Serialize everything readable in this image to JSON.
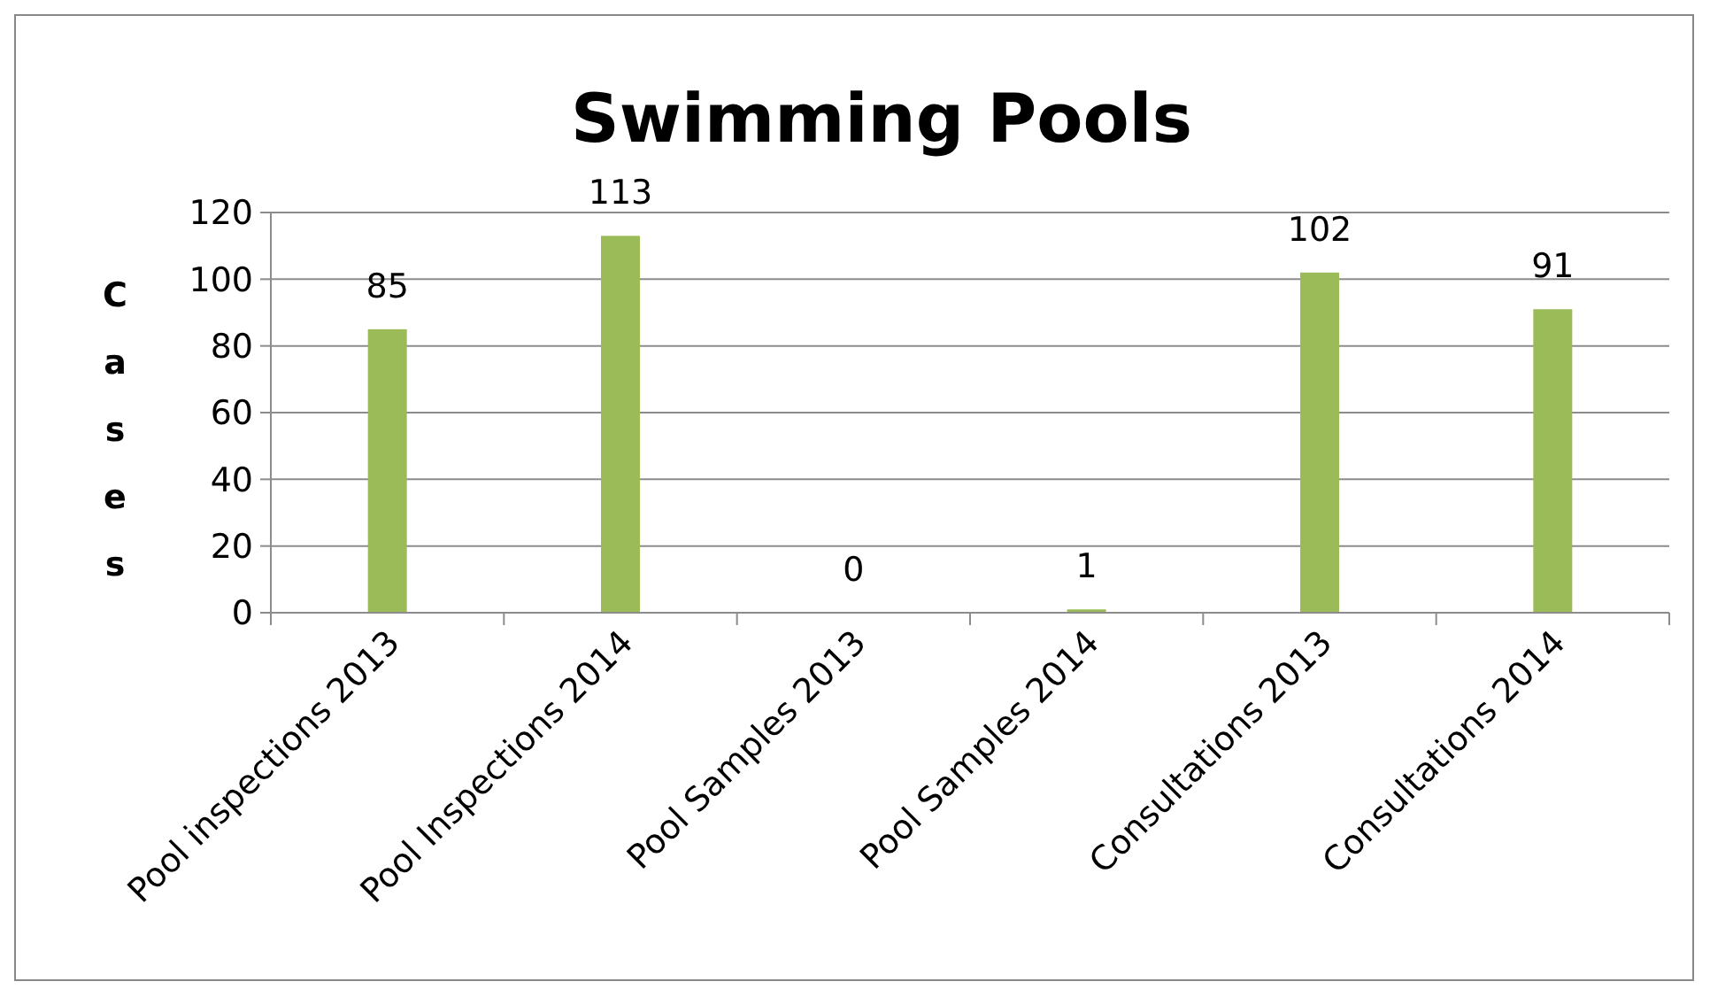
{
  "chart_data": {
    "type": "bar",
    "title": "Swimming Pools",
    "ylabel": "Cases",
    "categories": [
      "Pool inspections 2013",
      "Pool Inspections 2014",
      "Pool Samples 2013",
      "Pool Samples 2014",
      "Consultations 2013",
      "Consultations 2014"
    ],
    "values": [
      85,
      113,
      0,
      1,
      102,
      91
    ],
    "color": "#9bbb59",
    "ylim": [
      0,
      120
    ],
    "yticks": [
      0,
      20,
      40,
      60,
      80,
      100,
      120
    ],
    "grid": "y",
    "data_labels": true
  }
}
